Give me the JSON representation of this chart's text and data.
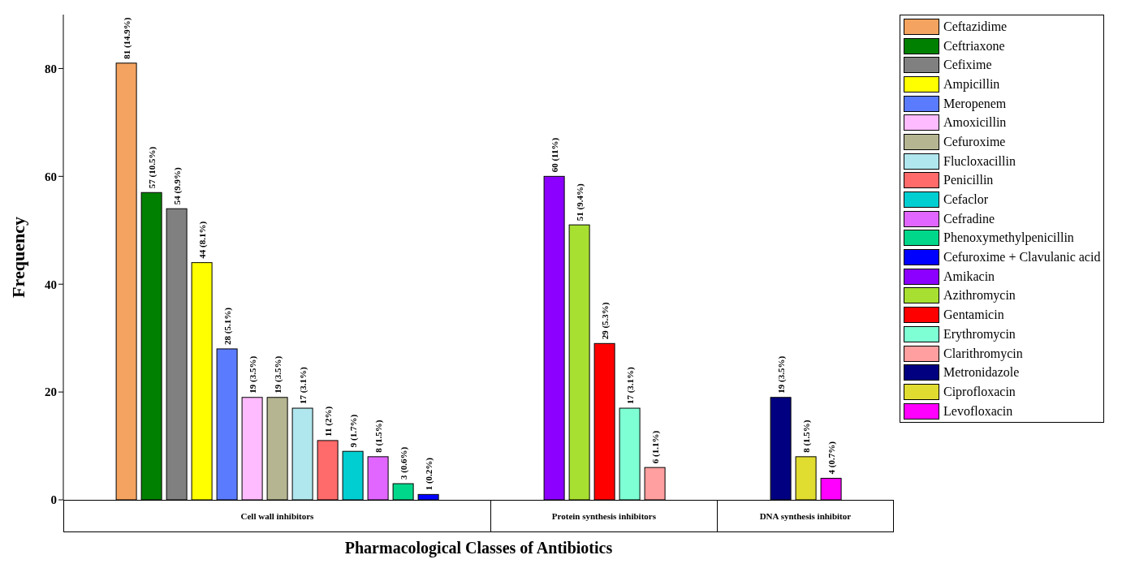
{
  "chart_data": {
    "type": "bar",
    "xlabel": "Pharmacological Classes of Antibiotics",
    "ylabel": "Frequency",
    "categories": [
      "Cell wall inhibitors",
      "Protein synthesis inhibitors",
      "DNA synthesis inhibitor"
    ],
    "ylim": [
      0,
      90
    ],
    "yticks": [
      0,
      20,
      40,
      60,
      80
    ],
    "grid": false,
    "legend": "right",
    "series": [
      {
        "name": "Ceftazidime",
        "color": "#f4a460",
        "values": [
          81,
          null,
          null
        ],
        "value_labels": [
          "81 (14.9%)",
          null,
          null
        ]
      },
      {
        "name": "Ceftriaxone",
        "color": "#008000",
        "values": [
          57,
          null,
          null
        ],
        "value_labels": [
          "57 (10.5%)",
          null,
          null
        ]
      },
      {
        "name": "Cefixime",
        "color": "#808080",
        "values": [
          54,
          null,
          null
        ],
        "value_labels": [
          "54 (9.9%)",
          null,
          null
        ]
      },
      {
        "name": "Ampicillin",
        "color": "#ffff00",
        "values": [
          44,
          null,
          null
        ],
        "value_labels": [
          "44 (8.1%)",
          null,
          null
        ]
      },
      {
        "name": "Meropenem",
        "color": "#5b7bff",
        "values": [
          28,
          null,
          null
        ],
        "value_labels": [
          "28 (5.1%)",
          null,
          null
        ]
      },
      {
        "name": "Amoxicillin",
        "color": "#ffbbff",
        "values": [
          19,
          null,
          null
        ],
        "value_labels": [
          "19 (3.5%)",
          null,
          null
        ]
      },
      {
        "name": "Cefuroxime",
        "color": "#b5b592",
        "values": [
          19,
          null,
          null
        ],
        "value_labels": [
          "19 (3.5%)",
          null,
          null
        ]
      },
      {
        "name": "Flucloxacillin",
        "color": "#b0e6ee",
        "values": [
          17,
          null,
          null
        ],
        "value_labels": [
          "17 (3.1%)",
          null,
          null
        ]
      },
      {
        "name": "Penicillin",
        "color": "#ff6a6a",
        "values": [
          11,
          null,
          null
        ],
        "value_labels": [
          "11 (2%)",
          null,
          null
        ]
      },
      {
        "name": "Cefaclor",
        "color": "#00ced1",
        "values": [
          9,
          null,
          null
        ],
        "value_labels": [
          "9 (1.7%)",
          null,
          null
        ]
      },
      {
        "name": "Cefradine",
        "color": "#e066ff",
        "values": [
          8,
          null,
          null
        ],
        "value_labels": [
          "8 (1.5%)",
          null,
          null
        ]
      },
      {
        "name": "Phenoxymethylpenicillin",
        "color": "#00d78a",
        "values": [
          3,
          null,
          null
        ],
        "value_labels": [
          "3 (0.6%)",
          null,
          null
        ]
      },
      {
        "name": "Cefuroxime + Clavulanic acid",
        "color": "#0000ff",
        "values": [
          1,
          null,
          null
        ],
        "value_labels": [
          "1 (0.2%)",
          null,
          null
        ]
      },
      {
        "name": "Amikacin",
        "color": "#8b00ff",
        "values": [
          null,
          60,
          null
        ],
        "value_labels": [
          null,
          "60 (11%)",
          null
        ]
      },
      {
        "name": "Azithromycin",
        "color": "#a8e032",
        "values": [
          null,
          51,
          null
        ],
        "value_labels": [
          null,
          "51 (9.4%)",
          null
        ]
      },
      {
        "name": "Gentamicin",
        "color": "#ff0000",
        "values": [
          null,
          29,
          null
        ],
        "value_labels": [
          null,
          "29 (5.3%)",
          null
        ]
      },
      {
        "name": "Erythromycin",
        "color": "#7fffd4",
        "values": [
          null,
          17,
          null
        ],
        "value_labels": [
          null,
          "17 (3.1%)",
          null
        ]
      },
      {
        "name": "Clarithromycin",
        "color": "#ff9f9f",
        "values": [
          null,
          6,
          null
        ],
        "value_labels": [
          null,
          "6 (1.1%)",
          null
        ]
      },
      {
        "name": "Metronidazole",
        "color": "#000080",
        "values": [
          null,
          null,
          19
        ],
        "value_labels": [
          null,
          null,
          "19 (3.5%)"
        ]
      },
      {
        "name": "Ciprofloxacin",
        "color": "#e0dc30",
        "values": [
          null,
          null,
          8
        ],
        "value_labels": [
          null,
          null,
          "8 (1.5%)"
        ]
      },
      {
        "name": "Levofloxacin",
        "color": "#ff00ff",
        "values": [
          null,
          null,
          4
        ],
        "value_labels": [
          null,
          null,
          "4 (0.7%)"
        ]
      }
    ]
  }
}
